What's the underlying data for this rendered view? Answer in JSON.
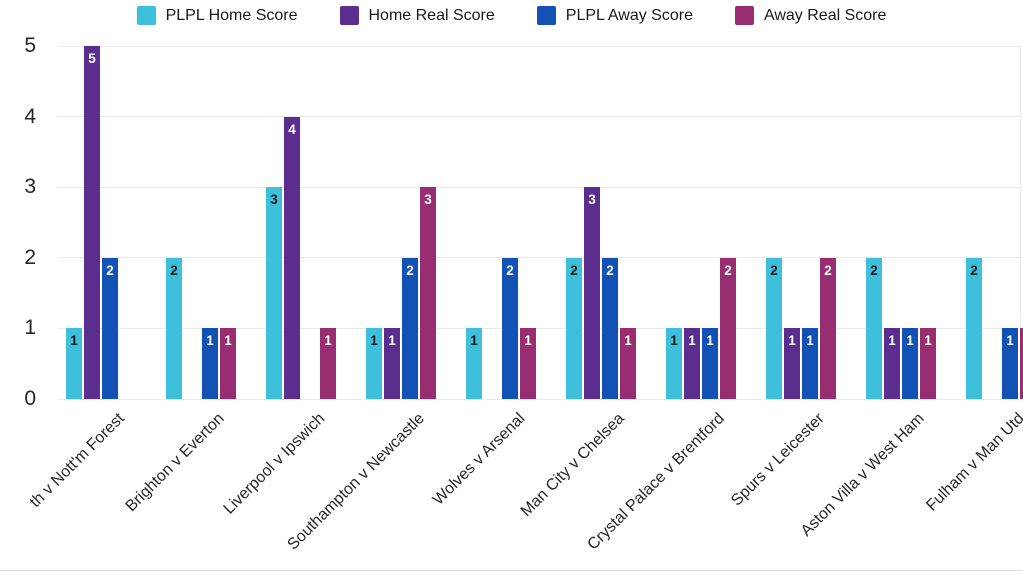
{
  "chart_data": {
    "type": "bar",
    "title": "",
    "xlabel": "",
    "ylabel": "",
    "categories": [
      "th v Nott'm Forest",
      "Brighton v Everton",
      "Liverpool v Ipswich",
      "Southampton v Newcastle",
      "Wolves v Arsenal",
      "Man City v Chelsea",
      "Crystal Palace v Brentford",
      "Spurs v Leicester",
      "Aston Villa v West Ham",
      "Fulham v Man Utd"
    ],
    "series": [
      {
        "name": "PLPL Home Score",
        "color": "#3ec0dd",
        "value_label_color": "#1a1a1a",
        "values": [
          1,
          2,
          3,
          1,
          1,
          2,
          1,
          2,
          2,
          2
        ]
      },
      {
        "name": "Home Real Score",
        "color": "#5b2d8e",
        "value_label_color": "#ffffff",
        "values": [
          5,
          0,
          4,
          1,
          0,
          3,
          1,
          1,
          1,
          0
        ]
      },
      {
        "name": "PLPL Away Score",
        "color": "#1252b4",
        "value_label_color": "#ffffff",
        "values": [
          2,
          1,
          0,
          2,
          2,
          2,
          1,
          1,
          1,
          1
        ]
      },
      {
        "name": "Away Real Score",
        "color": "#992d71",
        "value_label_color": "#ffffff",
        "values": [
          0,
          1,
          1,
          3,
          1,
          1,
          2,
          2,
          1,
          1
        ]
      }
    ],
    "yticks": [
      0,
      1,
      2,
      3,
      4,
      5
    ],
    "ylim": [
      0,
      5
    ],
    "grid": true,
    "legend_position": "top",
    "colors": {
      "background": "#ffffff",
      "gridline": "#e9e9eb",
      "tick_text": "#262626",
      "legend_text": "#1a1a1a"
    }
  }
}
